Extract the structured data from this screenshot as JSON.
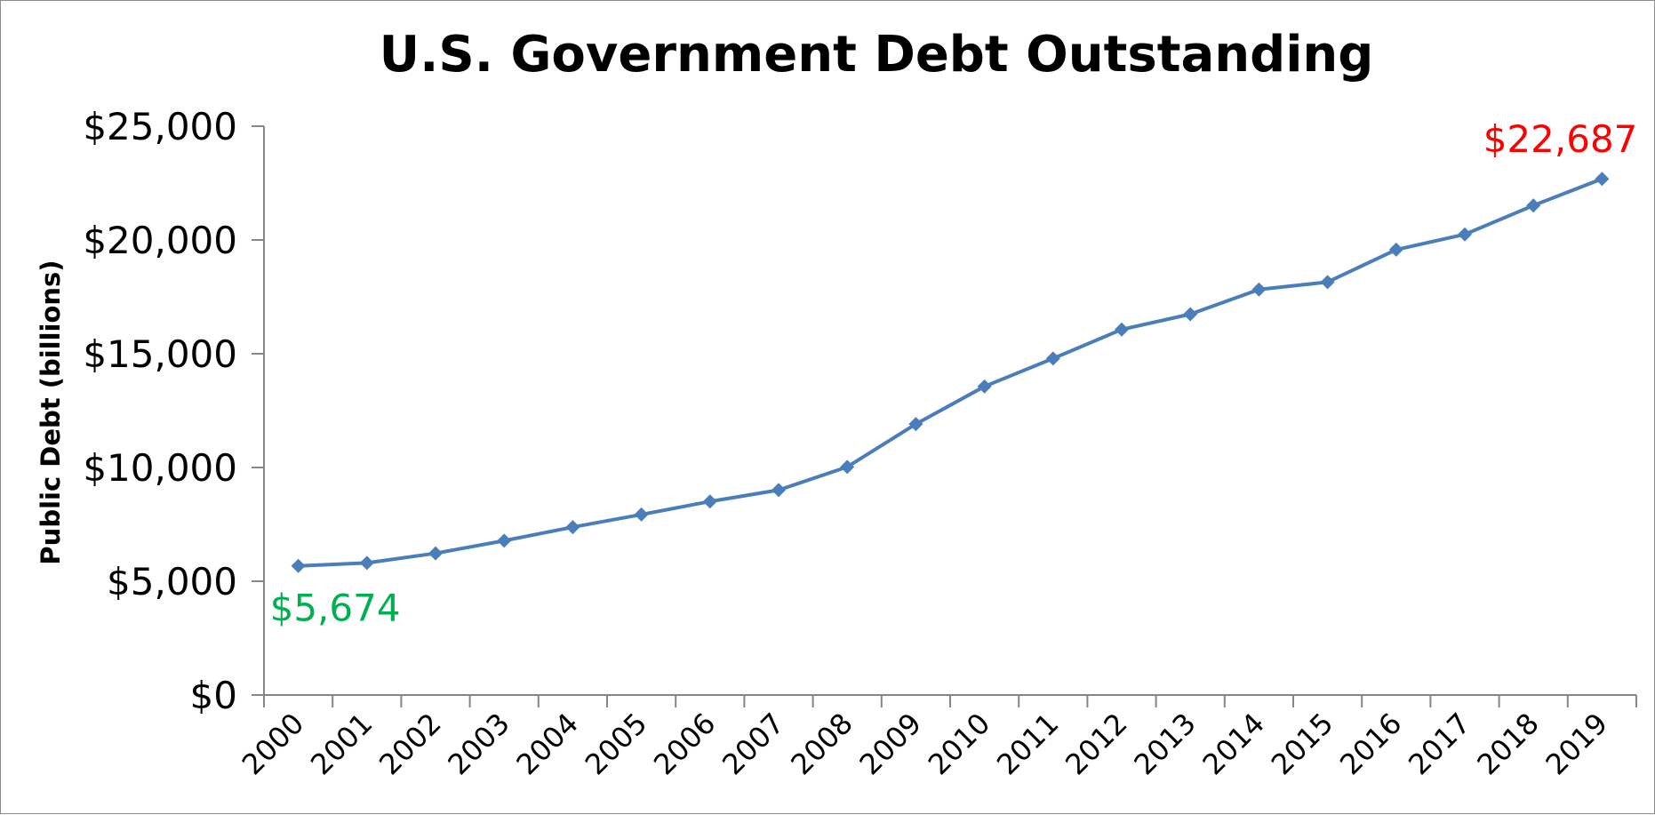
{
  "chart_data": {
    "type": "line",
    "title": "U.S. Government Debt Outstanding",
    "xlabel": "",
    "ylabel": "Public Debt (billions)",
    "categories": [
      "2000",
      "2001",
      "2002",
      "2003",
      "2004",
      "2005",
      "2006",
      "2007",
      "2008",
      "2009",
      "2010",
      "2011",
      "2012",
      "2013",
      "2014",
      "2015",
      "2016",
      "2017",
      "2018",
      "2019"
    ],
    "series": [
      {
        "values": [
          5674,
          5807,
          6228,
          6783,
          7379,
          7933,
          8507,
          9008,
          10025,
          11910,
          13562,
          14790,
          16066,
          16738,
          17824,
          18151,
          19573,
          20245,
          21516,
          22687
        ],
        "color": "#4a7ebb"
      }
    ],
    "ylim": [
      0,
      25000
    ],
    "yticks": [
      0,
      5000,
      10000,
      15000,
      20000,
      25000
    ],
    "ytick_labels": [
      "$0",
      "$5,000",
      "$10,000",
      "$15,000",
      "$20,000",
      "$25,000"
    ],
    "grid": false,
    "legend": "none",
    "annotations": [
      {
        "text": "$5,674",
        "category": "2000",
        "value": 5674,
        "color": "#00b050",
        "placement": "below"
      },
      {
        "text": "$22,687",
        "category": "2019",
        "value": 22687,
        "color": "#ff0000",
        "placement": "above"
      }
    ]
  }
}
